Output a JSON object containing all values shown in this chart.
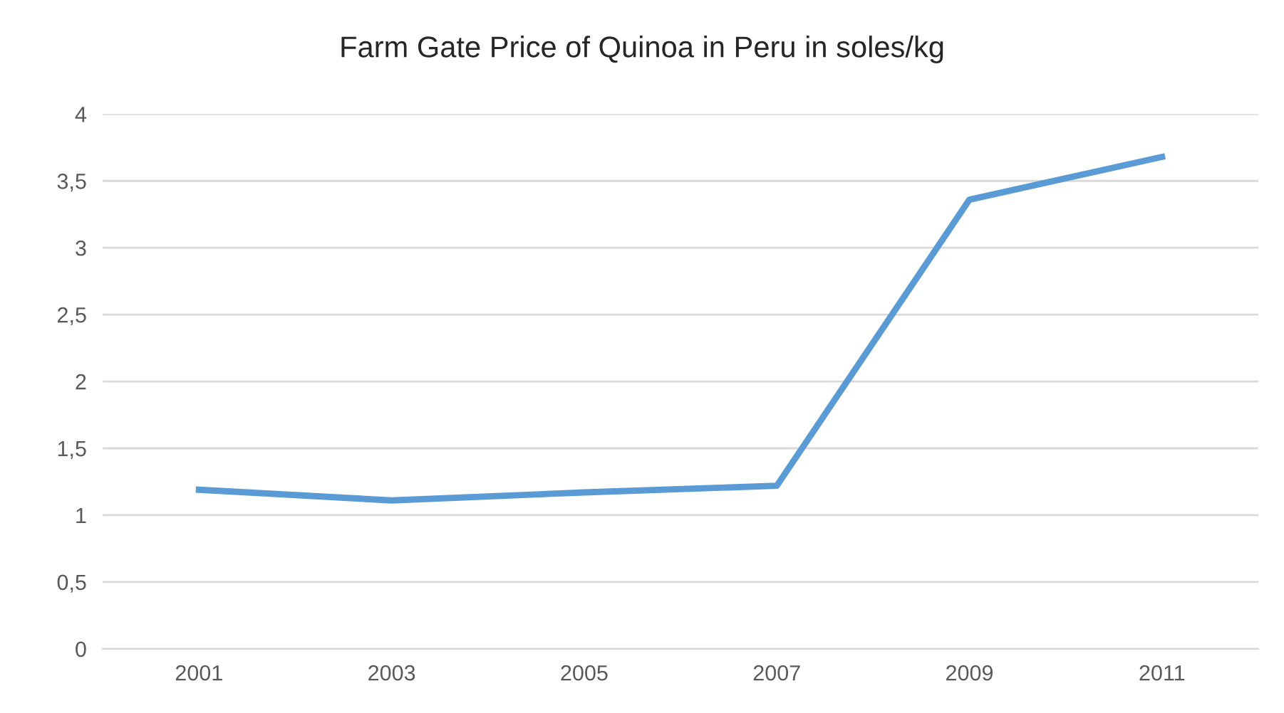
{
  "chart_data": {
    "type": "line",
    "title": "Farm Gate Price of Quinoa in Peru in soles/kg",
    "categories": [
      "2001",
      "2003",
      "2005",
      "2007",
      "2009",
      "2011"
    ],
    "series": [
      {
        "color": "#5b9bd5",
        "values": [
          1.19,
          1.11,
          1.17,
          1.22,
          3.36,
          3.68
        ]
      }
    ],
    "ylim": [
      0,
      4
    ],
    "yticks": [
      0,
      {
        "value": 0.5,
        "label": "0,5"
      },
      1,
      {
        "value": 1.5,
        "label": "1,5"
      },
      2,
      {
        "value": 2.5,
        "label": "2,5"
      },
      3,
      {
        "value": 3.5,
        "label": "3,5"
      },
      4
    ],
    "grid": "y",
    "marker": "none",
    "line_style": "solid"
  }
}
